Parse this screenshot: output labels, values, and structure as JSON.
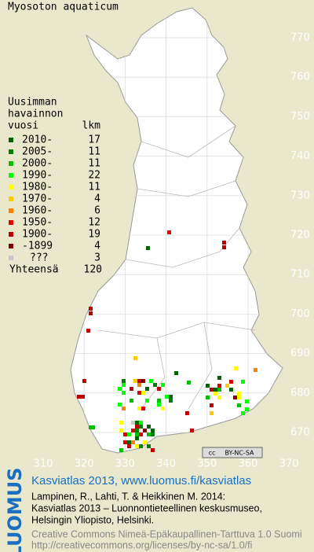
{
  "title": "Myosoton aquaticum",
  "legend": {
    "header": [
      "Uusimman",
      "havainnon",
      "vuosi"
    ],
    "count_header": "lkm",
    "rows": [
      {
        "label": "2010-",
        "count": 17,
        "color": "#006400"
      },
      {
        "label": "2005-",
        "count": 11,
        "color": "#008000"
      },
      {
        "label": "2000-",
        "count": 11,
        "color": "#00c000"
      },
      {
        "label": "1990-",
        "count": 22,
        "color": "#00ff00"
      },
      {
        "label": "1980-",
        "count": 11,
        "color": "#ffff00"
      },
      {
        "label": "1970-",
        "count": 4,
        "color": "#ffc800"
      },
      {
        "label": "1960-",
        "count": 6,
        "color": "#ff8000"
      },
      {
        "label": "1950-",
        "count": 12,
        "color": "#e00000"
      },
      {
        "label": "1900-",
        "count": 19,
        "color": "#c00000"
      },
      {
        "label": "-1899",
        "count": 4,
        "color": "#800000"
      },
      {
        "label": "???",
        "count": 3,
        "color": "#c8c8c8"
      }
    ],
    "total_label": "Yhteensä",
    "total": 120
  },
  "axes": {
    "x_labels": [
      310,
      320,
      330,
      340,
      350,
      360,
      370
    ],
    "y_labels": [
      670,
      680,
      690,
      700,
      710,
      720,
      730,
      740,
      750,
      760,
      770
    ]
  },
  "badge": [
    "cc",
    "BY-NC-SA"
  ],
  "footer": {
    "logo": "LUOMUS",
    "site": "Kasviatlas 2013, www.luomus.fi/kasviatlas",
    "citation": [
      "Lampinen, R., Lahti, T. & Heikkinen M. 2014:",
      "Kasviatlas 2013 – Luonnontieteellinen keskusmuseo,",
      "Helsingin Yliopisto, Helsinki."
    ],
    "license": [
      "Creative Commons Nimeä-Epäkaupallinen-Tarttuva 1.0 Suomi",
      "http://creativecommons.org/licenses/by-nc-sa/1.0/fi"
    ]
  }
}
